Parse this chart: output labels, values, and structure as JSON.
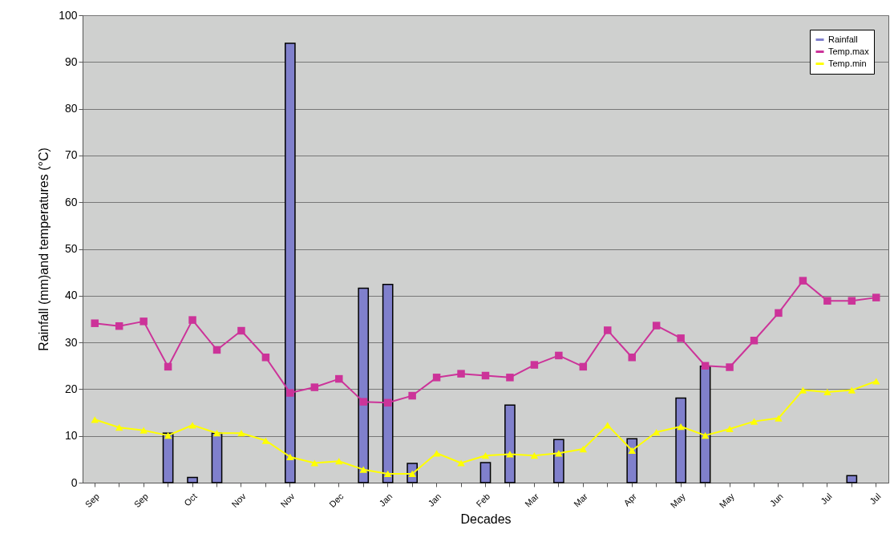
{
  "chart_data": {
    "type": "line",
    "xlabel": "Decades",
    "ylabel": "Rainfall (mm)and temperatures (°C)",
    "categories": [
      "Sep",
      null,
      "Sep",
      null,
      "Oct",
      null,
      "Nov",
      null,
      "Nov",
      null,
      "Dec",
      null,
      "Jan",
      null,
      "Jan",
      null,
      "Feb",
      null,
      "Mar",
      null,
      "Mar",
      null,
      "Apr",
      null,
      "May",
      null,
      "May",
      null,
      "Jun",
      null,
      "Jul",
      null,
      "Jul"
    ],
    "series": [
      {
        "name": "Rainfall",
        "type": "bar",
        "color": "#8080cc",
        "values": [
          null,
          null,
          null,
          10.6,
          1.1,
          10.6,
          null,
          null,
          94,
          null,
          null,
          41.6,
          42.4,
          4.1,
          null,
          null,
          4.3,
          16.6,
          null,
          9.2,
          null,
          null,
          9.4,
          null,
          18.1,
          24.9,
          null,
          null,
          null,
          null,
          null,
          1.5,
          null
        ]
      },
      {
        "name": "Temp.max",
        "color": "#cc3399",
        "marker": "square",
        "values": [
          34.1,
          33.5,
          34.5,
          24.8,
          34.8,
          28.4,
          32.5,
          26.8,
          19.2,
          20.4,
          22.2,
          17.3,
          17.1,
          18.6,
          22.5,
          23.3,
          22.9,
          22.5,
          25.2,
          27.2,
          24.8,
          32.6,
          26.8,
          33.6,
          30.9,
          25.0,
          24.7,
          30.4,
          36.3,
          43.2,
          38.9,
          38.9,
          39.6
        ]
      },
      {
        "name": "Temp.min",
        "color": "#ffff00",
        "marker": "triangle",
        "values": [
          13.5,
          11.8,
          11.2,
          10.1,
          12.3,
          10.6,
          10.6,
          9.0,
          5.5,
          4.2,
          4.6,
          2.8,
          1.9,
          1.9,
          6.3,
          4.2,
          5.8,
          6.1,
          5.8,
          6.3,
          7.2,
          12.3,
          6.9,
          10.8,
          12.0,
          10.1,
          11.5,
          13.1,
          13.8,
          19.8,
          19.4,
          19.8,
          21.7
        ]
      }
    ],
    "ylim": [
      0,
      100
    ],
    "yticks": [
      0,
      10,
      20,
      30,
      40,
      50,
      60,
      70,
      80,
      90,
      100
    ],
    "grid": "y",
    "legend": "top right"
  }
}
